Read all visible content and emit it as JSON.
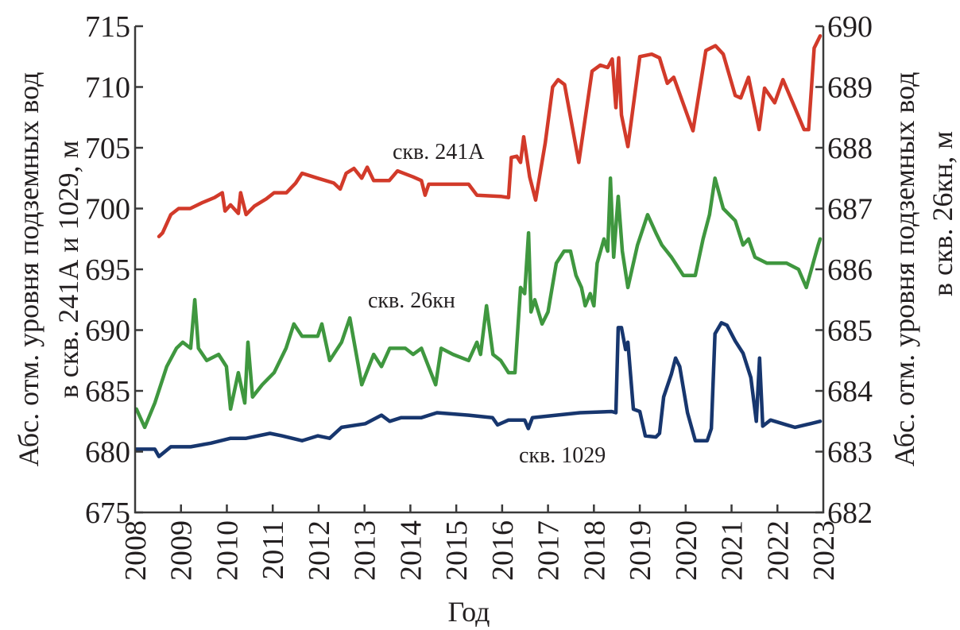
{
  "chart_data": {
    "type": "line",
    "title": "",
    "xlabel": "Год",
    "ylabel_left": [
      "Абс. отм. уровня подземных вод",
      "в скв. 241А и 1029, м"
    ],
    "ylabel_right": [
      "Абс. отм. уровня подземных вод",
      "в скв. 26кн, м"
    ],
    "xlim": [
      2008,
      2023
    ],
    "ylim_left": [
      675,
      715
    ],
    "ylim_right": [
      682,
      690
    ],
    "x_ticks": [
      "2008",
      "2009",
      "2010",
      "2011",
      "2012",
      "2013",
      "2014",
      "2015",
      "2016",
      "2017",
      "2018",
      "2019",
      "2020",
      "2021",
      "2022",
      "2023"
    ],
    "y_ticks_left": [
      "715",
      "710",
      "705",
      "700",
      "695",
      "690",
      "685",
      "680",
      "675"
    ],
    "y_ticks_right": [
      "690",
      "689",
      "688",
      "687",
      "686",
      "685",
      "684",
      "683",
      "682"
    ],
    "grid": false,
    "series": [
      {
        "name": "скв. 241А",
        "axis": "left",
        "color": "#d23a2a",
        "points": [
          [
            2008.52,
            697.7
          ],
          [
            2008.6,
            698.0
          ],
          [
            2008.78,
            699.5
          ],
          [
            2008.95,
            700.0
          ],
          [
            2009.2,
            700.0
          ],
          [
            2009.47,
            700.5
          ],
          [
            2009.73,
            700.9
          ],
          [
            2009.9,
            701.3
          ],
          [
            2009.96,
            699.8
          ],
          [
            2010.08,
            700.3
          ],
          [
            2010.25,
            699.6
          ],
          [
            2010.3,
            701.3
          ],
          [
            2010.42,
            699.5
          ],
          [
            2010.6,
            700.2
          ],
          [
            2010.86,
            700.8
          ],
          [
            2011.03,
            701.3
          ],
          [
            2011.3,
            701.3
          ],
          [
            2011.5,
            702.1
          ],
          [
            2011.64,
            702.9
          ],
          [
            2011.98,
            702.5
          ],
          [
            2012.33,
            702.1
          ],
          [
            2012.47,
            701.6
          ],
          [
            2012.6,
            702.9
          ],
          [
            2012.77,
            703.3
          ],
          [
            2012.94,
            702.5
          ],
          [
            2013.06,
            703.4
          ],
          [
            2013.2,
            702.3
          ],
          [
            2013.54,
            702.3
          ],
          [
            2013.72,
            703.1
          ],
          [
            2014.06,
            702.6
          ],
          [
            2014.24,
            702.3
          ],
          [
            2014.32,
            701.1
          ],
          [
            2014.4,
            702.0
          ],
          [
            2014.58,
            702.0
          ],
          [
            2015.27,
            702.0
          ],
          [
            2015.45,
            701.1
          ],
          [
            2015.97,
            701.0
          ],
          [
            2016.14,
            700.9
          ],
          [
            2016.2,
            704.2
          ],
          [
            2016.32,
            704.3
          ],
          [
            2016.4,
            703.8
          ],
          [
            2016.47,
            705.9
          ],
          [
            2016.6,
            702.6
          ],
          [
            2016.73,
            700.7
          ],
          [
            2016.94,
            705.4
          ],
          [
            2017.1,
            710.0
          ],
          [
            2017.22,
            710.6
          ],
          [
            2017.36,
            710.2
          ],
          [
            2017.67,
            703.8
          ],
          [
            2017.96,
            711.3
          ],
          [
            2018.14,
            711.8
          ],
          [
            2018.3,
            711.6
          ],
          [
            2018.4,
            712.3
          ],
          [
            2018.48,
            708.3
          ],
          [
            2018.54,
            712.4
          ],
          [
            2018.6,
            707.7
          ],
          [
            2018.74,
            705.1
          ],
          [
            2019.0,
            712.5
          ],
          [
            2019.26,
            712.7
          ],
          [
            2019.43,
            712.4
          ],
          [
            2019.6,
            710.3
          ],
          [
            2019.74,
            710.8
          ],
          [
            2020.16,
            706.4
          ],
          [
            2020.44,
            713.0
          ],
          [
            2020.65,
            713.4
          ],
          [
            2020.82,
            712.7
          ],
          [
            2021.08,
            709.3
          ],
          [
            2021.2,
            709.1
          ],
          [
            2021.37,
            710.8
          ],
          [
            2021.6,
            706.5
          ],
          [
            2021.72,
            709.9
          ],
          [
            2021.94,
            708.7
          ],
          [
            2022.12,
            710.6
          ],
          [
            2022.38,
            708.3
          ],
          [
            2022.58,
            706.5
          ],
          [
            2022.68,
            706.5
          ],
          [
            2022.8,
            713.2
          ],
          [
            2022.93,
            714.2
          ]
        ]
      },
      {
        "name": "скв. 26кн",
        "axis": "right",
        "color": "#3f973f",
        "points": [
          [
            2008.03,
            683.7
          ],
          [
            2008.21,
            683.4
          ],
          [
            2008.43,
            683.8
          ],
          [
            2008.69,
            684.4
          ],
          [
            2008.9,
            684.7
          ],
          [
            2009.04,
            684.8
          ],
          [
            2009.21,
            684.7
          ],
          [
            2009.3,
            685.5
          ],
          [
            2009.38,
            684.7
          ],
          [
            2009.56,
            684.5
          ],
          [
            2009.82,
            684.6
          ],
          [
            2009.99,
            684.4
          ],
          [
            2010.08,
            683.7
          ],
          [
            2010.25,
            684.3
          ],
          [
            2010.39,
            683.8
          ],
          [
            2010.46,
            684.8
          ],
          [
            2010.56,
            683.9
          ],
          [
            2010.77,
            684.1
          ],
          [
            2011.03,
            684.3
          ],
          [
            2011.29,
            684.7
          ],
          [
            2011.46,
            685.1
          ],
          [
            2011.64,
            684.9
          ],
          [
            2011.98,
            684.9
          ],
          [
            2012.07,
            685.1
          ],
          [
            2012.24,
            684.5
          ],
          [
            2012.5,
            684.8
          ],
          [
            2012.68,
            685.2
          ],
          [
            2012.94,
            684.1
          ],
          [
            2013.2,
            684.6
          ],
          [
            2013.37,
            684.4
          ],
          [
            2013.55,
            684.7
          ],
          [
            2013.89,
            684.7
          ],
          [
            2014.06,
            684.6
          ],
          [
            2014.24,
            684.7
          ],
          [
            2014.55,
            684.1
          ],
          [
            2014.67,
            684.7
          ],
          [
            2014.93,
            684.6
          ],
          [
            2015.27,
            684.5
          ],
          [
            2015.45,
            684.8
          ],
          [
            2015.53,
            684.6
          ],
          [
            2015.66,
            685.4
          ],
          [
            2015.8,
            684.6
          ],
          [
            2015.97,
            684.5
          ],
          [
            2016.14,
            684.3
          ],
          [
            2016.28,
            684.3
          ],
          [
            2016.4,
            685.7
          ],
          [
            2016.49,
            685.6
          ],
          [
            2016.575,
            686.6
          ],
          [
            2016.63,
            685.3
          ],
          [
            2016.71,
            685.5
          ],
          [
            2016.87,
            685.1
          ],
          [
            2017.0,
            685.3
          ],
          [
            2017.18,
            686.1
          ],
          [
            2017.35,
            686.3
          ],
          [
            2017.49,
            686.3
          ],
          [
            2017.61,
            685.9
          ],
          [
            2017.73,
            685.7
          ],
          [
            2017.81,
            685.4
          ],
          [
            2017.92,
            685.6
          ],
          [
            2018.0,
            685.4
          ],
          [
            2018.07,
            686.1
          ],
          [
            2018.22,
            686.5
          ],
          [
            2018.3,
            686.3
          ],
          [
            2018.36,
            687.5
          ],
          [
            2018.43,
            686.2
          ],
          [
            2018.53,
            687.2
          ],
          [
            2018.62,
            686.3
          ],
          [
            2018.74,
            685.7
          ],
          [
            2018.95,
            686.4
          ],
          [
            2019.17,
            686.9
          ],
          [
            2019.35,
            686.6
          ],
          [
            2019.48,
            686.4
          ],
          [
            2019.69,
            686.2
          ],
          [
            2019.95,
            685.9
          ],
          [
            2020.21,
            685.9
          ],
          [
            2020.38,
            686.5
          ],
          [
            2020.52,
            686.9
          ],
          [
            2020.64,
            687.5
          ],
          [
            2020.82,
            687.0
          ],
          [
            2021.08,
            686.8
          ],
          [
            2021.25,
            686.4
          ],
          [
            2021.37,
            686.5
          ],
          [
            2021.51,
            686.2
          ],
          [
            2021.77,
            686.1
          ],
          [
            2022.2,
            686.1
          ],
          [
            2022.46,
            686.0
          ],
          [
            2022.63,
            685.7
          ],
          [
            2022.89,
            686.4
          ],
          [
            2022.93,
            686.5
          ]
        ]
      },
      {
        "name": "скв. 1029",
        "axis": "left",
        "color": "#17366e",
        "points": [
          [
            2008.03,
            680.2
          ],
          [
            2008.43,
            680.2
          ],
          [
            2008.52,
            679.6
          ],
          [
            2008.78,
            680.4
          ],
          [
            2009.21,
            680.4
          ],
          [
            2009.65,
            680.7
          ],
          [
            2010.08,
            681.1
          ],
          [
            2010.42,
            681.1
          ],
          [
            2010.94,
            681.5
          ],
          [
            2011.2,
            681.3
          ],
          [
            2011.64,
            680.9
          ],
          [
            2011.98,
            681.3
          ],
          [
            2012.24,
            681.1
          ],
          [
            2012.5,
            682.0
          ],
          [
            2013.02,
            682.3
          ],
          [
            2013.37,
            683.0
          ],
          [
            2013.55,
            682.5
          ],
          [
            2013.8,
            682.8
          ],
          [
            2014.24,
            682.8
          ],
          [
            2014.58,
            683.2
          ],
          [
            2015.27,
            683.0
          ],
          [
            2015.79,
            682.8
          ],
          [
            2015.9,
            682.2
          ],
          [
            2016.14,
            682.6
          ],
          [
            2016.49,
            682.6
          ],
          [
            2016.57,
            681.9
          ],
          [
            2016.66,
            682.8
          ],
          [
            2017.18,
            683.0
          ],
          [
            2017.7,
            683.2
          ],
          [
            2018.39,
            683.3
          ],
          [
            2018.48,
            683.2
          ],
          [
            2018.53,
            690.2
          ],
          [
            2018.6,
            690.2
          ],
          [
            2018.69,
            688.4
          ],
          [
            2018.74,
            689.0
          ],
          [
            2018.86,
            683.5
          ],
          [
            2019.0,
            683.3
          ],
          [
            2019.12,
            681.3
          ],
          [
            2019.35,
            681.2
          ],
          [
            2019.43,
            681.5
          ],
          [
            2019.52,
            684.5
          ],
          [
            2019.69,
            686.4
          ],
          [
            2019.78,
            687.7
          ],
          [
            2019.87,
            687.0
          ],
          [
            2020.04,
            683.2
          ],
          [
            2020.21,
            680.9
          ],
          [
            2020.47,
            680.9
          ],
          [
            2020.56,
            681.9
          ],
          [
            2020.64,
            689.7
          ],
          [
            2020.78,
            690.6
          ],
          [
            2020.9,
            690.4
          ],
          [
            2021.08,
            689.1
          ],
          [
            2021.25,
            688.1
          ],
          [
            2021.42,
            686.1
          ],
          [
            2021.54,
            682.5
          ],
          [
            2021.61,
            687.7
          ],
          [
            2021.68,
            682.1
          ],
          [
            2021.85,
            682.6
          ],
          [
            2022.2,
            682.2
          ],
          [
            2022.38,
            682.0
          ],
          [
            2022.72,
            682.3
          ],
          [
            2022.93,
            682.5
          ]
        ]
      }
    ],
    "annotations": [
      {
        "text": "скв. 241А",
        "x": 2013.7,
        "y": 704.5,
        "axis": "left"
      },
      {
        "text": "скв. 26кн",
        "x": 2013.3,
        "y": 685.6,
        "axis": "right"
      },
      {
        "text": "скв. 1029",
        "x": 2016.2,
        "y": 679.8,
        "axis": "left"
      }
    ]
  }
}
